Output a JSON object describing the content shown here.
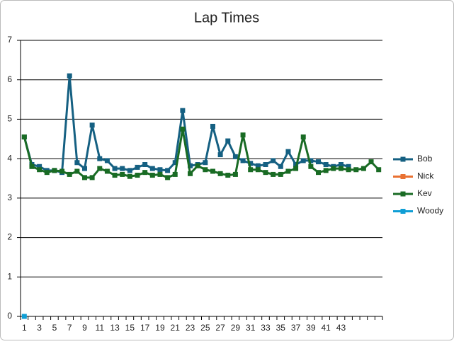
{
  "chart_data": {
    "type": "line",
    "title": "Lap Times",
    "categories": [
      1,
      null,
      3,
      null,
      5,
      null,
      7,
      null,
      9,
      null,
      11,
      null,
      13,
      null,
      15,
      null,
      17,
      null,
      19,
      null,
      21,
      null,
      23,
      null,
      25,
      null,
      27,
      null,
      29,
      null,
      31,
      null,
      33,
      null,
      35,
      null,
      37,
      null,
      39,
      null,
      41,
      null,
      43,
      null,
      null,
      null,
      null,
      null
    ],
    "series": [
      {
        "name": "Bob",
        "color": "#156082",
        "values": [
          4.55,
          3.85,
          3.8,
          3.7,
          3.7,
          3.65,
          6.1,
          3.9,
          3.75,
          4.85,
          4.0,
          3.95,
          3.75,
          3.75,
          3.7,
          3.78,
          3.85,
          3.75,
          3.72,
          3.7,
          3.9,
          5.22,
          3.82,
          3.85,
          3.9,
          4.82,
          4.1,
          4.45,
          4.05,
          3.95,
          3.88,
          3.82,
          3.85,
          3.95,
          3.8,
          4.18,
          3.85,
          3.95,
          3.95,
          3.92,
          3.85,
          3.8,
          3.85,
          3.8,
          null,
          null,
          null,
          null
        ]
      },
      {
        "name": "Nick",
        "color": "#E97132",
        "values": [
          null,
          null,
          null,
          null,
          null,
          null,
          null,
          null,
          null,
          null,
          null,
          null,
          null,
          null,
          null,
          null,
          null,
          null,
          null,
          null,
          null,
          null,
          null,
          null,
          null,
          null,
          null,
          null,
          null,
          null,
          null,
          null,
          null,
          null,
          null,
          null,
          null,
          null,
          null,
          null,
          null,
          null,
          null,
          null,
          null,
          null,
          null,
          null
        ]
      },
      {
        "name": "Kev",
        "color": "#196B24",
        "values": [
          4.55,
          3.8,
          3.72,
          3.65,
          3.7,
          3.68,
          3.6,
          3.68,
          3.52,
          3.52,
          3.75,
          3.68,
          3.58,
          3.6,
          3.55,
          3.58,
          3.65,
          3.58,
          3.6,
          3.52,
          3.6,
          4.75,
          3.62,
          3.82,
          3.72,
          3.68,
          3.62,
          3.58,
          3.6,
          4.6,
          3.72,
          3.72,
          3.65,
          3.6,
          3.6,
          3.68,
          3.75,
          4.55,
          3.8,
          3.65,
          3.7,
          3.75,
          3.75,
          3.72,
          3.72,
          3.75,
          3.92,
          3.72
        ]
      },
      {
        "name": "Woody",
        "color": "#0F9ED5",
        "values": [
          0,
          null,
          null,
          null,
          null,
          null,
          null,
          null,
          null,
          null,
          null,
          null,
          null,
          null,
          null,
          null,
          null,
          null,
          null,
          null,
          null,
          null,
          null,
          null,
          null,
          null,
          null,
          null,
          null,
          null,
          null,
          null,
          null,
          null,
          null,
          null,
          null,
          null,
          null,
          null,
          null,
          null,
          null,
          null,
          null,
          null,
          null,
          null
        ]
      }
    ],
    "ylim": [
      0,
      7
    ],
    "yticks": [
      0,
      1,
      2,
      3,
      4,
      5,
      6,
      7
    ],
    "grid": true,
    "legend": "right"
  }
}
